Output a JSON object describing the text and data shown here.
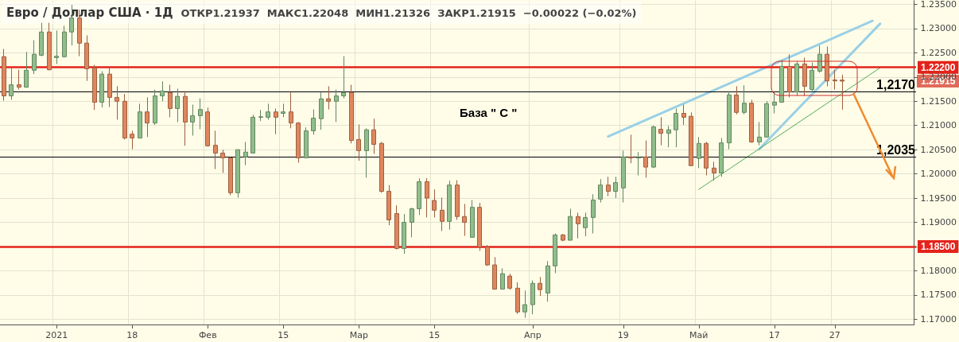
{
  "chart_data": {
    "type": "candlestick",
    "title": "Евро / Доллар США · 1Д",
    "subtitle": "ОТКР1.21937  МАКС1.22048  МИН1.21326  ЗАКР1.21915  −0.00022 (−0.02%)",
    "categories": [
      null,
      null,
      null,
      null,
      null,
      null,
      null,
      "2021",
      null,
      null,
      null,
      null,
      null,
      null,
      null,
      null,
      null,
      "18",
      null,
      null,
      null,
      null,
      null,
      null,
      null,
      null,
      null,
      "Фев",
      null,
      null,
      null,
      null,
      null,
      null,
      null,
      null,
      null,
      "15",
      null,
      null,
      null,
      null,
      null,
      null,
      null,
      null,
      null,
      "Мар",
      null,
      null,
      null,
      null,
      null,
      null,
      null,
      null,
      null,
      "15",
      null,
      null,
      null,
      null,
      null,
      null,
      null,
      null,
      null,
      null,
      null,
      null,
      "Апр",
      null,
      null,
      null,
      null,
      null,
      null,
      null,
      null,
      null,
      null,
      null,
      "19",
      null,
      null,
      null,
      null,
      null,
      null,
      null,
      null,
      null,
      "Май",
      null,
      null,
      null,
      null,
      null,
      null,
      null,
      null,
      null,
      "17",
      null,
      null,
      null,
      null,
      null,
      null,
      null,
      "27",
      null,
      null,
      null,
      null,
      null,
      null,
      null,
      null,
      null,
      null
    ],
    "colors": [
      "#e0865d",
      "#8fbe8b",
      "#e0865d",
      "#8fbe8b",
      "#8fbe8b",
      "#8fbe8b",
      "#e0865d",
      "#8fbe8b",
      "#8fbe8b",
      "#8fbe8b",
      "#e0865d",
      "#e0865d",
      "#e0865d",
      "#8fbe8b",
      "#e0865d",
      "#e0865d",
      "#e0865d",
      "#e0865d",
      "#8fbe8b",
      "#e0865d",
      "#8fbe8b",
      "#8fbe8b",
      "#e0865d",
      "#8fbe8b",
      "#e0865d",
      "#8fbe8b",
      "#8fbe8b",
      "#e0865d",
      "#e0865d",
      "#e0865d",
      "#e0865d",
      "#8fbe8b",
      "#8fbe8b",
      "#8fbe8b",
      "#8fbe8b",
      "#8fbe8b",
      "#e0865d",
      "#8fbe8b",
      "#e0865d",
      "#e0865d",
      "#8fbe8b",
      "#8fbe8b",
      "#8fbe8b",
      "#e0865d",
      "#8fbe8b",
      "#8fbe8b",
      "#e0865d",
      "#e0865d",
      "#8fbe8b",
      "#e0865d",
      "#e0865d",
      "#e0865d",
      "#e0865d",
      "#8fbe8b",
      "#8fbe8b",
      "#8fbe8b",
      "#e0865d",
      "#e0865d",
      "#e0865d",
      "#8fbe8b",
      "#e0865d",
      "#e0865d",
      "#8fbe8b",
      "#e0865d",
      "#e0865d",
      "#e0865d",
      "#8fbe8b",
      "#e0865d",
      "#e0865d",
      "#8fbe8b",
      "#8fbe8b",
      "#e0865d",
      "#8fbe8b",
      "#8fbe8b",
      "#e0865d",
      "#8fbe8b",
      "#e0865d",
      "#8fbe8b",
      "#8fbe8b",
      "#8fbe8b",
      "#e0865d",
      "#8fbe8b",
      "#8fbe8b",
      "#e0865d",
      "#8fbe8b",
      "#e0865d",
      "#8fbe8b",
      "#e0865d",
      "#8fbe8b",
      "#8fbe8b",
      "#e0865d",
      "#e0865d",
      "#8fbe8b",
      "#e0865d",
      "#e0865d",
      "#8fbe8b",
      "#8fbe8b",
      "#e0865d",
      "#8fbe8b",
      "#e0865d",
      "#8fbe8b",
      "#8fbe8b",
      "#8fbe8b",
      "#8fbe8b",
      "#e0865d",
      "#8fbe8b",
      "#e0865d",
      "#8fbe8b",
      "#8fbe8b",
      "#e0865d",
      "#e0865d",
      "#e0865d",
      null,
      null,
      null,
      null,
      null,
      null,
      null,
      null,
      null
    ],
    "ohlc": [
      [
        1.2242,
        1.2258,
        1.2151,
        1.2161
      ],
      [
        1.2161,
        1.222,
        1.2153,
        1.2184
      ],
      [
        1.2184,
        1.2215,
        1.2174,
        1.2179
      ],
      [
        1.2179,
        1.2252,
        1.2178,
        1.2214
      ],
      [
        1.2214,
        1.2276,
        1.2206,
        1.2247
      ],
      [
        1.2245,
        1.2312,
        1.2243,
        1.2293
      ],
      [
        1.2293,
        1.2312,
        1.2214,
        1.2215
      ],
      [
        1.224,
        1.2296,
        1.2227,
        1.2243
      ],
      [
        1.2242,
        1.2306,
        1.224,
        1.2293
      ],
      [
        1.2293,
        1.2349,
        1.2265,
        1.2322
      ],
      [
        1.2322,
        1.2339,
        1.2243,
        1.227
      ],
      [
        1.227,
        1.2286,
        1.2192,
        1.2217
      ],
      [
        1.2219,
        1.2225,
        1.2132,
        1.2148
      ],
      [
        1.2148,
        1.2212,
        1.2137,
        1.2206
      ],
      [
        1.2206,
        1.2222,
        1.2138,
        1.2158
      ],
      [
        1.2158,
        1.2181,
        1.2112,
        1.215
      ],
      [
        1.215,
        1.2165,
        1.2071,
        1.2074
      ],
      [
        1.2082,
        1.2089,
        1.2051,
        1.2074
      ],
      [
        1.2074,
        1.2145,
        1.2074,
        1.2128
      ],
      [
        1.2128,
        1.2158,
        1.2076,
        1.2105
      ],
      [
        1.2105,
        1.2174,
        1.2101,
        1.2161
      ],
      [
        1.2161,
        1.2191,
        1.215,
        1.2171
      ],
      [
        1.2168,
        1.2184,
        1.2117,
        1.2135
      ],
      [
        1.2135,
        1.2176,
        1.2107,
        1.216
      ],
      [
        1.216,
        1.2171,
        1.2058,
        1.2107
      ],
      [
        1.2107,
        1.2143,
        1.2079,
        1.212
      ],
      [
        1.212,
        1.2156,
        1.2092,
        1.2133
      ],
      [
        1.2128,
        1.2137,
        1.2056,
        1.2058
      ],
      [
        1.2059,
        1.2089,
        1.201,
        1.2043
      ],
      [
        1.2043,
        1.205,
        1.2002,
        1.2033
      ],
      [
        1.2033,
        1.2035,
        1.1956,
        1.1961
      ],
      [
        1.1961,
        1.205,
        1.1951,
        1.205
      ],
      [
        1.2035,
        1.2066,
        1.2018,
        1.2045
      ],
      [
        1.2043,
        1.2122,
        1.2043,
        1.2117
      ],
      [
        1.2117,
        1.2132,
        1.2109,
        1.2118
      ],
      [
        1.2117,
        1.2145,
        1.2112,
        1.2128
      ],
      [
        1.2128,
        1.2135,
        1.2082,
        1.2117
      ],
      [
        1.2125,
        1.2145,
        1.2117,
        1.2128
      ],
      [
        1.2128,
        1.2168,
        1.2094,
        1.2105
      ],
      [
        1.2105,
        1.2107,
        1.2023,
        1.2033
      ],
      [
        1.2033,
        1.2096,
        1.2033,
        1.2089
      ],
      [
        1.2089,
        1.2133,
        1.2081,
        1.2115
      ],
      [
        1.2114,
        1.2168,
        1.2091,
        1.2155
      ],
      [
        1.2155,
        1.2181,
        1.2133,
        1.215
      ],
      [
        1.215,
        1.2174,
        1.2107,
        1.2161
      ],
      [
        1.2161,
        1.2243,
        1.2156,
        1.2168
      ],
      [
        1.2168,
        1.2184,
        1.2063,
        1.2069
      ],
      [
        1.2071,
        1.2102,
        1.2027,
        1.2048
      ],
      [
        1.2048,
        1.2094,
        1.1992,
        1.2091
      ],
      [
        1.2091,
        1.2114,
        1.2041,
        1.2061
      ],
      [
        1.2063,
        1.2066,
        1.1961,
        1.1964
      ],
      [
        1.1964,
        1.1977,
        1.1894,
        1.1905
      ],
      [
        1.1918,
        1.1935,
        1.1844,
        1.1846
      ],
      [
        1.1846,
        1.1917,
        1.1835,
        1.19
      ],
      [
        1.19,
        1.193,
        1.1869,
        1.1928
      ],
      [
        1.1928,
        1.1991,
        1.1915,
        1.1984
      ],
      [
        1.1984,
        1.1991,
        1.191,
        1.195
      ],
      [
        1.1945,
        1.1968,
        1.191,
        1.1925
      ],
      [
        1.1925,
        1.1951,
        1.1882,
        1.1902
      ],
      [
        1.1902,
        1.1986,
        1.1885,
        1.1977
      ],
      [
        1.1977,
        1.1987,
        1.1905,
        1.1912
      ],
      [
        1.1912,
        1.1938,
        1.1872,
        1.19
      ],
      [
        1.1869,
        1.1946,
        1.1869,
        1.1931
      ],
      [
        1.1931,
        1.194,
        1.1841,
        1.1849
      ],
      [
        1.1849,
        1.1853,
        1.181,
        1.1812
      ],
      [
        1.1812,
        1.1828,
        1.1761,
        1.1762
      ],
      [
        1.1762,
        1.1805,
        1.1762,
        1.1794
      ],
      [
        1.1789,
        1.1794,
        1.1761,
        1.1764
      ],
      [
        1.1764,
        1.1776,
        1.1711,
        1.1715
      ],
      [
        1.1715,
        1.1759,
        1.1703,
        1.173
      ],
      [
        1.173,
        1.178,
        1.171,
        1.1774
      ],
      [
        1.1774,
        1.1787,
        1.1748,
        1.1761
      ],
      [
        1.1754,
        1.182,
        1.1736,
        1.181
      ],
      [
        1.181,
        1.1877,
        1.1795,
        1.1874
      ],
      [
        1.1874,
        1.1876,
        1.1861,
        1.1863
      ],
      [
        1.1863,
        1.1928,
        1.1863,
        1.1912
      ],
      [
        1.1912,
        1.192,
        1.1867,
        1.1897
      ],
      [
        1.1889,
        1.192,
        1.1871,
        1.191
      ],
      [
        1.191,
        1.1958,
        1.1877,
        1.1946
      ],
      [
        1.1948,
        1.1989,
        1.1941,
        1.1977
      ],
      [
        1.1977,
        1.1994,
        1.1954,
        1.1964
      ],
      [
        1.1964,
        1.1994,
        1.195,
        1.1982
      ],
      [
        1.1971,
        1.2048,
        1.1941,
        1.2035
      ],
      [
        1.2035,
        1.2081,
        1.2022,
        1.2033
      ],
      [
        1.2033,
        1.2045,
        1.1997,
        1.2034
      ],
      [
        1.2035,
        1.2069,
        1.1992,
        1.2014
      ],
      [
        1.2014,
        1.21,
        1.2012,
        1.2097
      ],
      [
        1.2092,
        1.2117,
        1.2059,
        1.2084
      ],
      [
        1.2084,
        1.2099,
        1.2055,
        1.2091
      ],
      [
        1.2091,
        1.2135,
        1.2055,
        1.2125
      ],
      [
        1.2125,
        1.2143,
        1.2101,
        1.2117
      ],
      [
        1.2119,
        1.2127,
        1.2017,
        1.2017
      ],
      [
        1.2032,
        1.2076,
        1.2012,
        1.2063
      ],
      [
        1.2063,
        1.2066,
        1.1997,
        1.2012
      ],
      [
        1.2012,
        1.2025,
        1.1986,
        1.2002
      ],
      [
        1.2002,
        1.2074,
        1.1994,
        1.2064
      ],
      [
        1.2064,
        1.2171,
        1.2051,
        1.2163
      ],
      [
        1.2163,
        1.2181,
        1.2123,
        1.2127
      ],
      [
        1.2127,
        1.2183,
        1.2123,
        1.2146
      ],
      [
        1.2146,
        1.2153,
        1.2064,
        1.2066
      ],
      [
        1.2066,
        1.2107,
        1.2059,
        1.2076
      ],
      [
        1.2076,
        1.215,
        1.2076,
        1.2145
      ],
      [
        1.2142,
        1.2169,
        1.2125,
        1.2148
      ],
      [
        1.2148,
        1.2235,
        1.2148,
        1.2222
      ],
      [
        1.2222,
        1.2247,
        1.2158,
        1.2169
      ],
      [
        1.2169,
        1.2232,
        1.2161,
        1.2227
      ],
      [
        1.2227,
        1.224,
        1.2161,
        1.2181
      ],
      [
        1.2174,
        1.223,
        1.2169,
        1.2214
      ],
      [
        1.2212,
        1.2265,
        1.2209,
        1.2247
      ],
      [
        1.2247,
        1.2263,
        1.2181,
        1.2192
      ],
      [
        1.2194,
        1.2215,
        1.2174,
        1.2192
      ],
      [
        1.21937,
        1.22048,
        1.21326,
        1.21915
      ],
      null,
      null,
      null,
      null,
      null,
      null,
      null,
      null,
      null
    ],
    "series": [
      {
        "type": "line",
        "color": "#9ad0e6",
        "line_style": "solid",
        "values": [
          null,
          null,
          null,
          null,
          null,
          null,
          null,
          null,
          null,
          null,
          null,
          null,
          null,
          null,
          null,
          null,
          null,
          null,
          null,
          null,
          null,
          null,
          null,
          null,
          null,
          null,
          null,
          null,
          null,
          null,
          null,
          null,
          null,
          null,
          null,
          null,
          null,
          null,
          null,
          null,
          null,
          null,
          null,
          null,
          null,
          null,
          null,
          null,
          null,
          null,
          null,
          null,
          null,
          null,
          null,
          null,
          null,
          null,
          null,
          null,
          null,
          null,
          null,
          null,
          null,
          null,
          null,
          null,
          null,
          null,
          null,
          null,
          null,
          null,
          null,
          null,
          null,
          null,
          null,
          null,
          1.2077,
          null,
          null,
          null,
          null,
          null,
          null,
          null,
          null,
          null,
          null,
          null,
          null,
          null,
          null,
          null,
          null,
          null,
          null,
          null,
          null,
          null,
          null,
          null,
          null,
          null,
          null,
          null,
          null,
          null,
          null,
          null,
          null,
          null,
          null,
          1.2316,
          null,
          null,
          null,
          null,
          null
        ]
      },
      {
        "type": "line",
        "color": "#9ad0e6",
        "line_style": "solid",
        "values": [
          null,
          null,
          null,
          null,
          null,
          null,
          null,
          null,
          null,
          null,
          null,
          null,
          null,
          null,
          null,
          null,
          null,
          null,
          null,
          null,
          null,
          null,
          null,
          null,
          null,
          null,
          null,
          null,
          null,
          null,
          null,
          null,
          null,
          null,
          null,
          null,
          null,
          null,
          null,
          null,
          null,
          null,
          null,
          null,
          null,
          null,
          null,
          null,
          null,
          null,
          null,
          null,
          null,
          null,
          null,
          null,
          null,
          null,
          null,
          null,
          null,
          null,
          null,
          null,
          null,
          null,
          null,
          null,
          null,
          null,
          null,
          null,
          null,
          null,
          null,
          null,
          null,
          null,
          null,
          null,
          null,
          null,
          null,
          null,
          null,
          null,
          null,
          null,
          null,
          null,
          null,
          null,
          null,
          null,
          null,
          null,
          null,
          null,
          null,
          null,
          1.2051,
          null,
          null,
          null,
          null,
          null,
          null,
          null,
          null,
          null,
          null,
          null,
          null,
          null,
          null,
          null,
          1.231,
          null,
          null,
          null,
          null
        ]
      },
      {
        "type": "line",
        "color": "#2e9e3e",
        "line_style": "dotted",
        "values": [
          null,
          null,
          null,
          null,
          null,
          null,
          null,
          null,
          null,
          null,
          null,
          null,
          null,
          null,
          null,
          null,
          null,
          null,
          null,
          null,
          null,
          null,
          null,
          null,
          null,
          null,
          null,
          null,
          null,
          null,
          null,
          null,
          null,
          null,
          null,
          null,
          null,
          null,
          null,
          null,
          null,
          null,
          null,
          null,
          null,
          null,
          null,
          null,
          null,
          null,
          null,
          null,
          null,
          null,
          null,
          null,
          null,
          null,
          null,
          null,
          null,
          null,
          null,
          null,
          null,
          null,
          null,
          null,
          null,
          null,
          null,
          null,
          null,
          null,
          null,
          null,
          null,
          null,
          null,
          null,
          null,
          null,
          null,
          null,
          null,
          null,
          null,
          null,
          null,
          null,
          null,
          null,
          1.1968,
          null,
          null,
          null,
          null,
          null,
          null,
          null,
          null,
          null,
          null,
          null,
          null,
          null,
          null,
          null,
          null,
          null,
          null,
          null,
          null,
          null,
          null,
          null,
          1.2219,
          null,
          null,
          null,
          null
        ]
      }
    ],
    "marker": "none",
    "ylim": [
      1.1689,
      1.2358
    ],
    "yticks": [
      {
        "value": 1.17,
        "label": "1.17000"
      },
      {
        "value": 1.175,
        "label": "1.17500"
      },
      {
        "value": 1.18,
        "label": "1.18000"
      },
      {
        "value": 1.185,
        "label": "1.18500"
      },
      {
        "value": 1.19,
        "label": "1.19000"
      },
      {
        "value": 1.195,
        "label": "1.19500"
      },
      {
        "value": 1.2,
        "label": "1.20000"
      },
      {
        "value": 1.205,
        "label": "1.20500"
      },
      {
        "value": 1.21,
        "label": "1.21000"
      },
      {
        "value": 1.215,
        "label": "1.21500"
      },
      {
        "value": 1.22,
        "label": "1.22000"
      },
      {
        "value": 1.225,
        "label": "1.22500"
      },
      {
        "value": 1.23,
        "label": "1.23000"
      },
      {
        "value": 1.235,
        "label": "1.23500"
      }
    ],
    "ref_lines": [
      {
        "axis": "y",
        "value": 1.222,
        "label": "1.22200",
        "color": "#e3231b"
      },
      {
        "axis": "y",
        "value": 1.217,
        "label": "1,2170",
        "color": "#000000"
      },
      {
        "axis": "y",
        "value": 1.2035,
        "label": "1,2035",
        "color": "#000000"
      },
      {
        "axis": "y",
        "value": 1.185,
        "label": "1.18500",
        "color": "#e3231b"
      }
    ],
    "annotations": [
      "База \" C \"",
      "1.21915"
    ],
    "grid": true
  }
}
